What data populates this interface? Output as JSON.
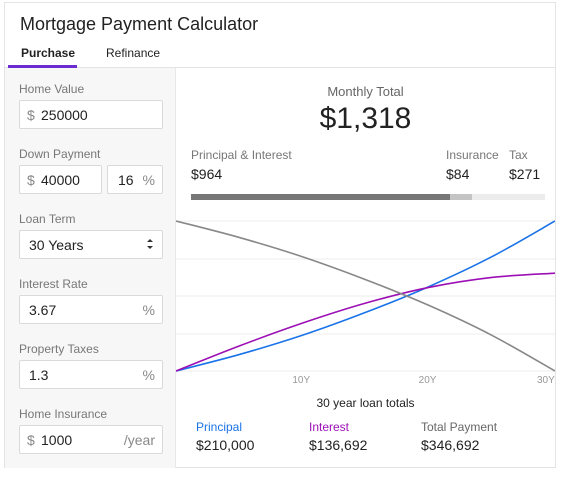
{
  "app": {
    "title": "Mortgage Payment Calculator"
  },
  "tabs": [
    {
      "label": "Purchase",
      "active": true
    },
    {
      "label": "Refinance",
      "active": false
    }
  ],
  "form": {
    "home_value": {
      "label": "Home Value",
      "prefix": "$",
      "value": "250000"
    },
    "down_payment": {
      "label": "Down Payment",
      "prefix": "$",
      "value": "40000",
      "percent": "16",
      "percent_suffix": "%"
    },
    "loan_term": {
      "label": "Loan Term",
      "value": "30 Years"
    },
    "interest_rate": {
      "label": "Interest Rate",
      "value": "3.67",
      "suffix": "%"
    },
    "property_taxes": {
      "label": "Property Taxes",
      "value": "1.3",
      "suffix": "%"
    },
    "home_insurance": {
      "label": "Home Insurance",
      "prefix": "$",
      "value": "1000",
      "suffix": "/year"
    }
  },
  "summary": {
    "monthly_label": "Monthly Total",
    "monthly_value": "$1,318",
    "breakdown": [
      {
        "label": "Principal & Interest",
        "value": "$964",
        "amount": 964,
        "color": "#777777"
      },
      {
        "label": "Insurance",
        "value": "$84",
        "amount": 84,
        "color": "#c4c4c4"
      },
      {
        "label": "Tax",
        "value": "$271",
        "amount": 271,
        "color": "#ececec"
      }
    ]
  },
  "colors": {
    "accent": "#6b2bd1",
    "principal": "#1a73e8",
    "interest": "#9c0fb5",
    "balance": "#888888"
  },
  "chart_data": {
    "type": "line",
    "x_ticks": [
      "10Y",
      "20Y",
      "30Y"
    ],
    "xlim": [
      0,
      30
    ],
    "caption": "30 year loan totals",
    "series": [
      {
        "name": "Principal",
        "color": "#1a73e8",
        "x": [
          0,
          5,
          10,
          15,
          20,
          25,
          30
        ],
        "y": [
          0,
          23,
          50,
          82,
          118,
          160,
          210
        ]
      },
      {
        "name": "Interest",
        "color": "#9c0fb5",
        "x": [
          0,
          5,
          10,
          15,
          20,
          25,
          30
        ],
        "y": [
          0,
          35,
          67,
          95,
          117,
          131,
          137
        ]
      },
      {
        "x": [
          0,
          5,
          10,
          15,
          20,
          25,
          30
        ],
        "y": [
          210,
          187,
          160,
          128,
          92,
          50,
          0
        ],
        "color": "#888888"
      }
    ],
    "ylim": [
      0,
      210
    ],
    "grid": true
  },
  "totals": [
    {
      "label": "Principal",
      "value": "$210,000",
      "color": "#1a73e8"
    },
    {
      "label": "Interest",
      "value": "$136,692",
      "color": "#9c0fb5"
    },
    {
      "label": "Total Payment",
      "value": "$346,692",
      "color": "#666666"
    }
  ]
}
